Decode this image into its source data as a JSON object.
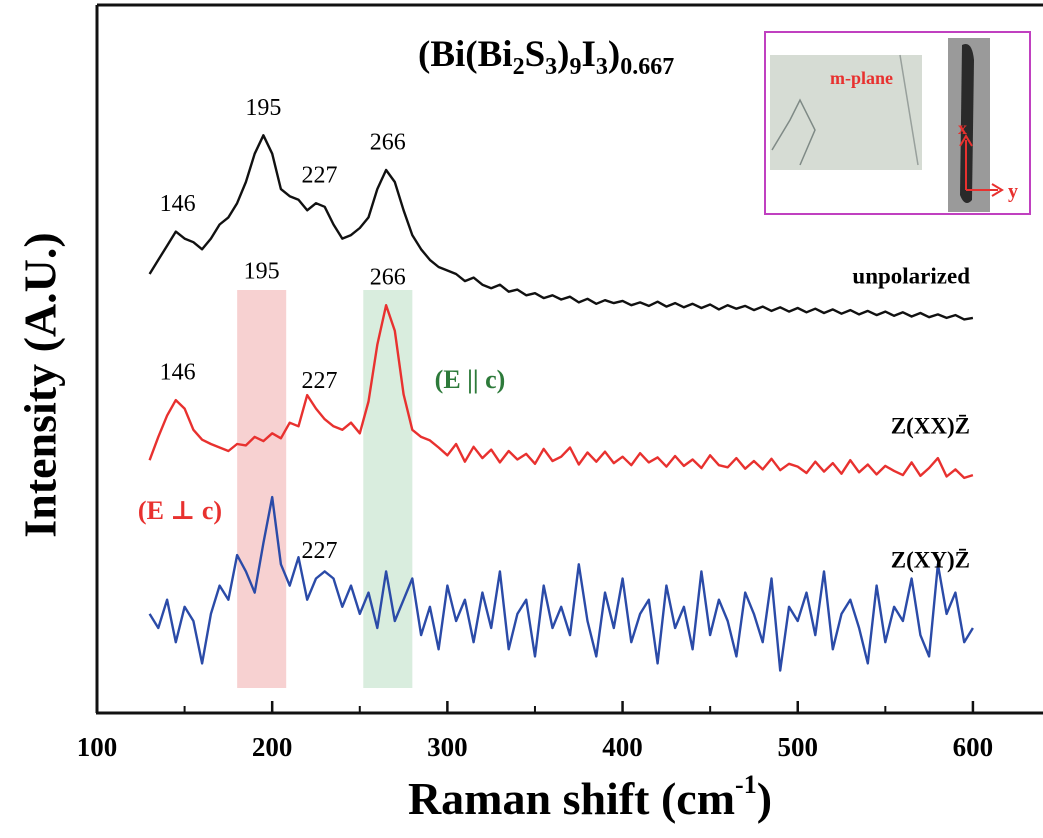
{
  "chart_data": {
    "type": "line",
    "title_parts": [
      "(Bi(Bi",
      "2",
      "S",
      "3",
      ")",
      "9",
      "I",
      "3",
      ")",
      "0.667"
    ],
    "x_label_parts": [
      "Raman shift (cm",
      "-1",
      ")"
    ],
    "y_label": "Intensity (A.U.)",
    "xlim": [
      100,
      640
    ],
    "ylim": [
      0,
      100
    ],
    "xticks": [
      100,
      200,
      300,
      400,
      500,
      600
    ],
    "xminorticks": [
      150,
      250,
      350,
      450,
      550
    ],
    "x": [
      130,
      135,
      140,
      145,
      150,
      155,
      160,
      165,
      170,
      175,
      180,
      185,
      190,
      195,
      200,
      205,
      210,
      215,
      220,
      225,
      230,
      235,
      240,
      245,
      250,
      255,
      260,
      265,
      270,
      275,
      280,
      285,
      290,
      295,
      300,
      305,
      310,
      315,
      320,
      325,
      330,
      335,
      340,
      345,
      350,
      355,
      360,
      365,
      370,
      375,
      380,
      385,
      390,
      395,
      400,
      405,
      410,
      415,
      420,
      425,
      430,
      435,
      440,
      445,
      450,
      455,
      460,
      465,
      470,
      475,
      480,
      485,
      490,
      495,
      500,
      505,
      510,
      515,
      520,
      525,
      530,
      535,
      540,
      545,
      550,
      555,
      560,
      565,
      570,
      575,
      580,
      585,
      590,
      595,
      600
    ],
    "series": [
      {
        "name": "unpolarized",
        "color": "#111111",
        "peaks": [
          146,
          195,
          227,
          266
        ],
        "values": [
          62,
          64,
          66,
          68,
          67,
          66.5,
          65.5,
          67,
          69,
          70,
          72,
          75,
          79,
          81.6,
          79,
          74,
          73,
          72.5,
          71,
          72,
          71.5,
          69,
          67,
          67.5,
          68.5,
          70,
          74,
          76.7,
          75,
          71,
          67.5,
          65.5,
          64,
          63,
          62.5,
          62,
          61,
          61.5,
          60.5,
          60,
          60.5,
          59.5,
          59.8,
          59,
          59.3,
          58.6,
          59,
          58.4,
          58.8,
          58,
          58.5,
          57.8,
          58.3,
          57.9,
          58.2,
          57.6,
          58,
          57.5,
          58.1,
          57.4,
          57.9,
          57.3,
          57.8,
          57.2,
          57.7,
          57,
          57.6,
          57.1,
          57.5,
          56.9,
          57.4,
          56.8,
          57.3,
          56.7,
          57.2,
          56.6,
          57.1,
          56.5,
          57,
          56.4,
          56.9,
          56.3,
          56.8,
          56.2,
          56.7,
          56.1,
          56.6,
          56,
          56.5,
          55.9,
          56.3,
          55.8,
          56.2,
          55.6,
          55.8
        ]
      },
      {
        "name": "Z(XX)Z̄",
        "color": "#e8312f",
        "peaks": [
          146,
          227,
          266
        ],
        "values": [
          35.7,
          39,
          42,
          44.2,
          43,
          40,
          38.6,
          38,
          37.5,
          37,
          38,
          37.8,
          39,
          38.4,
          39.5,
          38.8,
          41,
          40.5,
          44.9,
          43,
          41.5,
          40.5,
          40,
          41,
          39.5,
          44,
          52,
          57.6,
          54,
          45,
          40,
          39,
          38.5,
          37.5,
          36.4,
          38,
          35.5,
          37.6,
          36,
          37.2,
          35.4,
          37,
          35.8,
          36.6,
          35.2,
          37.3,
          35.6,
          36.2,
          37.5,
          35.1,
          36.8,
          35.5,
          36.9,
          35.3,
          36.2,
          35,
          36.7,
          35.4,
          36.1,
          34.8,
          36.3,
          34.9,
          35.8,
          34.6,
          36.4,
          35,
          34.7,
          36,
          34.5,
          35.6,
          34.4,
          35.9,
          34.3,
          35.2,
          34.8,
          33.9,
          35.5,
          34.1,
          35.3,
          33.8,
          35.7,
          34,
          35.1,
          33.7,
          34.9,
          34.2,
          33.6,
          35.4,
          33.5,
          34.6,
          36,
          33.4,
          34.4,
          33.2,
          33.6
        ]
      },
      {
        "name": "Z(XY)Z̄",
        "color": "#2b4ba8",
        "peaks": [
          227
        ],
        "values": [
          14,
          12,
          16,
          10,
          15,
          13,
          7,
          14,
          18,
          16,
          22.3,
          20,
          17,
          24,
          30.5,
          21,
          18,
          22,
          16,
          19,
          20,
          19,
          15,
          18,
          14,
          17,
          12,
          20,
          13,
          16,
          19,
          11,
          15,
          9,
          18,
          13,
          16,
          10,
          17,
          12,
          20,
          9,
          14,
          16,
          8,
          18,
          12,
          15,
          11,
          21,
          13,
          8,
          17,
          12,
          19,
          10,
          14,
          16,
          7,
          18,
          12,
          15,
          9,
          20,
          11,
          16,
          13,
          8,
          17,
          14,
          10,
          19,
          6,
          15,
          13,
          17,
          11,
          20,
          9,
          14,
          16,
          12,
          7,
          18,
          10,
          15,
          13,
          19,
          11,
          8,
          21,
          14,
          17,
          10,
          12
        ]
      }
    ],
    "bands": [
      {
        "range": [
          180,
          208
        ],
        "color": "#f5c6c6",
        "label": 195
      },
      {
        "range": [
          252,
          280
        ],
        "color": "#cfe9d6"
      }
    ],
    "annotations": [
      {
        "text": "(E || c)",
        "color": "#2d7a3a"
      },
      {
        "text": "(E ⊥ c)",
        "color": "#e8312f"
      }
    ],
    "inset": {
      "label": "m-plane",
      "axes": [
        "x",
        "y"
      ]
    }
  }
}
